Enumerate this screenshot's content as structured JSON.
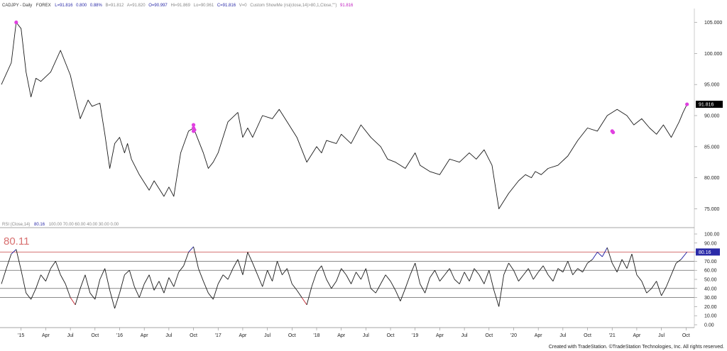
{
  "header": {
    "symbol": "CADJPY - Daily",
    "exchange": "FOREX",
    "last": "L=91.816",
    "change": "0.800",
    "change_pct": "0.88%",
    "bid": "B=91.812",
    "ask": "A=91.820",
    "open": "O=90.997",
    "high": "Hi=91.869",
    "low": "Lo=90.961",
    "close": "C=91.816",
    "volume": "V=0",
    "showme": "Custom ShowMe (rsi(close,14)>80,1,Close,\"\")",
    "showme_value": "91.816"
  },
  "rsi_header": {
    "label": "RSI (Close,14)",
    "value": "80.16",
    "levels": "100.00  70.00  60.00  40.00  30.00  0.00"
  },
  "big_label": "80.11",
  "footer": "Created with TradeStation. ©TradeStation Technologies, Inc. All rights reserved.",
  "colors": {
    "price_line": "#1a1a1a",
    "showme": "#e040e0",
    "rsi_overbought": "#1a1aa0",
    "rsi_oversold": "#c0202a",
    "threshold": "#d06060",
    "header_blue": "#2a2aa8",
    "header_magenta": "#c020c0"
  },
  "chart_data": [
    {
      "type": "line",
      "name": "CADJPY",
      "y_ticks": [
        "105.000",
        "100.000",
        "95.000",
        "90.000",
        "85.000",
        "80.000",
        "75.000"
      ],
      "y_tick_values": [
        105,
        100,
        95,
        90,
        85,
        80,
        75
      ],
      "ylim": [
        73,
        107
      ],
      "last_value_label": "91.816",
      "last_value": 91.816,
      "x": [
        2014.8,
        2014.9,
        2014.95,
        2015.0,
        2015.05,
        2015.1,
        2015.15,
        2015.2,
        2015.3,
        2015.4,
        2015.5,
        2015.55,
        2015.6,
        2015.68,
        2015.72,
        2015.8,
        2015.85,
        2015.9,
        2015.95,
        2016.0,
        2016.05,
        2016.08,
        2016.12,
        2016.2,
        2016.3,
        2016.35,
        2016.45,
        2016.5,
        2016.55,
        2016.62,
        2016.7,
        2016.75,
        2016.8,
        2016.85,
        2016.9,
        2016.95,
        2017.0,
        2017.1,
        2017.2,
        2017.25,
        2017.3,
        2017.35,
        2017.45,
        2017.55,
        2017.62,
        2017.7,
        2017.8,
        2017.9,
        2018.0,
        2018.05,
        2018.1,
        2018.2,
        2018.25,
        2018.35,
        2018.45,
        2018.55,
        2018.65,
        2018.72,
        2018.8,
        2018.9,
        2019.0,
        2019.05,
        2019.15,
        2019.25,
        2019.35,
        2019.45,
        2019.55,
        2019.62,
        2019.7,
        2019.78,
        2019.85,
        2019.95,
        2020.05,
        2020.12,
        2020.18,
        2020.22,
        2020.28,
        2020.35,
        2020.45,
        2020.55,
        2020.65,
        2020.75,
        2020.85,
        2020.95,
        2021.05,
        2021.15,
        2021.22,
        2021.3,
        2021.38,
        2021.45,
        2021.52,
        2021.6,
        2021.68,
        2021.72,
        2021.76
      ],
      "y": [
        95.0,
        98.5,
        105.0,
        104.0,
        97.0,
        93.0,
        96.0,
        95.5,
        97.0,
        100.5,
        96.5,
        93.0,
        89.5,
        92.5,
        91.5,
        92.0,
        87.0,
        81.5,
        85.5,
        86.5,
        84.0,
        85.5,
        83.0,
        80.5,
        78.0,
        79.5,
        77.0,
        78.5,
        77.0,
        84.0,
        87.5,
        88.0,
        86.0,
        84.0,
        81.5,
        82.5,
        84.0,
        89.0,
        90.5,
        86.5,
        88.0,
        86.5,
        90.0,
        89.5,
        91.0,
        89.0,
        86.5,
        82.5,
        85.0,
        84.0,
        86.0,
        85.5,
        87.0,
        85.5,
        88.5,
        86.5,
        85.0,
        83.0,
        82.5,
        81.5,
        84.0,
        82.0,
        81.0,
        80.5,
        83.0,
        82.5,
        84.0,
        83.0,
        84.5,
        82.0,
        75.0,
        77.5,
        79.5,
        80.5,
        80.0,
        81.0,
        80.5,
        81.5,
        82.0,
        83.5,
        86.0,
        88.0,
        87.5,
        90.0,
        91.0,
        90.0,
        88.5,
        89.5,
        88.0,
        87.0,
        88.5,
        86.5,
        89.0,
        90.5,
        91.816
      ],
      "showme_points": [
        {
          "x": 2014.95,
          "y": 105.0
        },
        {
          "x": 2016.75,
          "y": 88.5
        },
        {
          "x": 2016.75,
          "y": 88.0
        },
        {
          "x": 2016.75,
          "y": 87.5
        },
        {
          "x": 2016.76,
          "y": 87.7
        },
        {
          "x": 2021.0,
          "y": 87.5
        },
        {
          "x": 2021.01,
          "y": 87.3
        },
        {
          "x": 2021.76,
          "y": 91.816
        }
      ]
    },
    {
      "type": "line",
      "name": "RSI (Close,14)",
      "y_ticks": [
        "100.00",
        "90.00",
        "80.00",
        "70.00",
        "60.00",
        "50.00",
        "40.00",
        "30.00",
        "20.00",
        "10.00",
        "0.00"
      ],
      "y_tick_values": [
        100,
        90,
        80,
        70,
        60,
        50,
        40,
        30,
        20,
        10,
        0
      ],
      "ylim": [
        0,
        100
      ],
      "levels": [
        80.11,
        70,
        60,
        40,
        30
      ],
      "last_value_label": "80.16",
      "last_value": 80.16,
      "x": [
        2014.8,
        2014.85,
        2014.9,
        2014.95,
        2015.0,
        2015.05,
        2015.1,
        2015.15,
        2015.2,
        2015.25,
        2015.3,
        2015.35,
        2015.4,
        2015.45,
        2015.5,
        2015.55,
        2015.6,
        2015.65,
        2015.7,
        2015.75,
        2015.8,
        2015.85,
        2015.9,
        2015.95,
        2016.0,
        2016.05,
        2016.1,
        2016.15,
        2016.2,
        2016.25,
        2016.3,
        2016.35,
        2016.4,
        2016.45,
        2016.5,
        2016.55,
        2016.6,
        2016.65,
        2016.7,
        2016.75,
        2016.8,
        2016.85,
        2016.9,
        2016.95,
        2017.0,
        2017.05,
        2017.1,
        2017.15,
        2017.2,
        2017.25,
        2017.3,
        2017.35,
        2017.4,
        2017.45,
        2017.5,
        2017.55,
        2017.6,
        2017.65,
        2017.7,
        2017.75,
        2017.8,
        2017.85,
        2017.9,
        2017.95,
        2018.0,
        2018.05,
        2018.1,
        2018.15,
        2018.2,
        2018.25,
        2018.3,
        2018.35,
        2018.4,
        2018.45,
        2018.5,
        2018.55,
        2018.6,
        2018.65,
        2018.7,
        2018.75,
        2018.8,
        2018.85,
        2018.9,
        2018.95,
        2019.0,
        2019.05,
        2019.1,
        2019.15,
        2019.2,
        2019.25,
        2019.3,
        2019.35,
        2019.4,
        2019.45,
        2019.5,
        2019.55,
        2019.6,
        2019.65,
        2019.7,
        2019.75,
        2019.8,
        2019.85,
        2019.9,
        2019.95,
        2020.0,
        2020.05,
        2020.1,
        2020.15,
        2020.2,
        2020.25,
        2020.3,
        2020.35,
        2020.4,
        2020.45,
        2020.5,
        2020.55,
        2020.6,
        2020.65,
        2020.7,
        2020.75,
        2020.8,
        2020.85,
        2020.9,
        2020.95,
        2021.0,
        2021.05,
        2021.1,
        2021.15,
        2021.2,
        2021.25,
        2021.3,
        2021.35,
        2021.4,
        2021.45,
        2021.5,
        2021.55,
        2021.6,
        2021.65,
        2021.7,
        2021.76
      ],
      "y": [
        45,
        62,
        78,
        83,
        60,
        35,
        28,
        40,
        55,
        48,
        62,
        70,
        55,
        45,
        30,
        22,
        40,
        55,
        35,
        28,
        50,
        62,
        38,
        18,
        35,
        55,
        60,
        42,
        30,
        45,
        55,
        38,
        48,
        35,
        52,
        42,
        58,
        65,
        80,
        86,
        62,
        48,
        35,
        28,
        45,
        55,
        50,
        62,
        72,
        55,
        80,
        68,
        55,
        42,
        60,
        48,
        70,
        55,
        62,
        45,
        38,
        30,
        22,
        42,
        58,
        65,
        50,
        40,
        48,
        62,
        55,
        45,
        58,
        50,
        62,
        40,
        35,
        45,
        55,
        48,
        38,
        26,
        40,
        55,
        68,
        45,
        35,
        52,
        60,
        48,
        55,
        62,
        50,
        45,
        58,
        48,
        62,
        55,
        45,
        60,
        38,
        20,
        55,
        68,
        60,
        48,
        55,
        62,
        50,
        58,
        65,
        55,
        48,
        62,
        58,
        70,
        55,
        62,
        58,
        68,
        72,
        80,
        75,
        85,
        68,
        58,
        72,
        62,
        78,
        55,
        48,
        35,
        40,
        48,
        32,
        42,
        55,
        68,
        72,
        80.16
      ],
      "overbought_threshold": 80.11,
      "oversold_threshold": 30
    },
    {
      "type": "axis",
      "name": "x-axis",
      "x_ticks": [
        "'15",
        "Apr",
        "Jul",
        "Oct",
        "'16",
        "Apr",
        "Jul",
        "Oct",
        "'17",
        "Apr",
        "Jul",
        "Oct",
        "'18",
        "Apr",
        "Jul",
        "Oct",
        "'19",
        "Apr",
        "Jul",
        "Oct",
        "'20",
        "Apr",
        "Jul",
        "Oct",
        "'21",
        "Apr",
        "Jul",
        "Oct"
      ],
      "x_tick_values": [
        2015.0,
        2015.25,
        2015.5,
        2015.75,
        2016.0,
        2016.25,
        2016.5,
        2016.75,
        2017.0,
        2017.25,
        2017.5,
        2017.75,
        2018.0,
        2018.25,
        2018.5,
        2018.75,
        2019.0,
        2019.25,
        2019.5,
        2019.75,
        2020.0,
        2020.25,
        2020.5,
        2020.75,
        2021.0,
        2021.25,
        2021.5,
        2021.75
      ],
      "xlim": [
        2014.8,
        2021.82
      ]
    }
  ]
}
